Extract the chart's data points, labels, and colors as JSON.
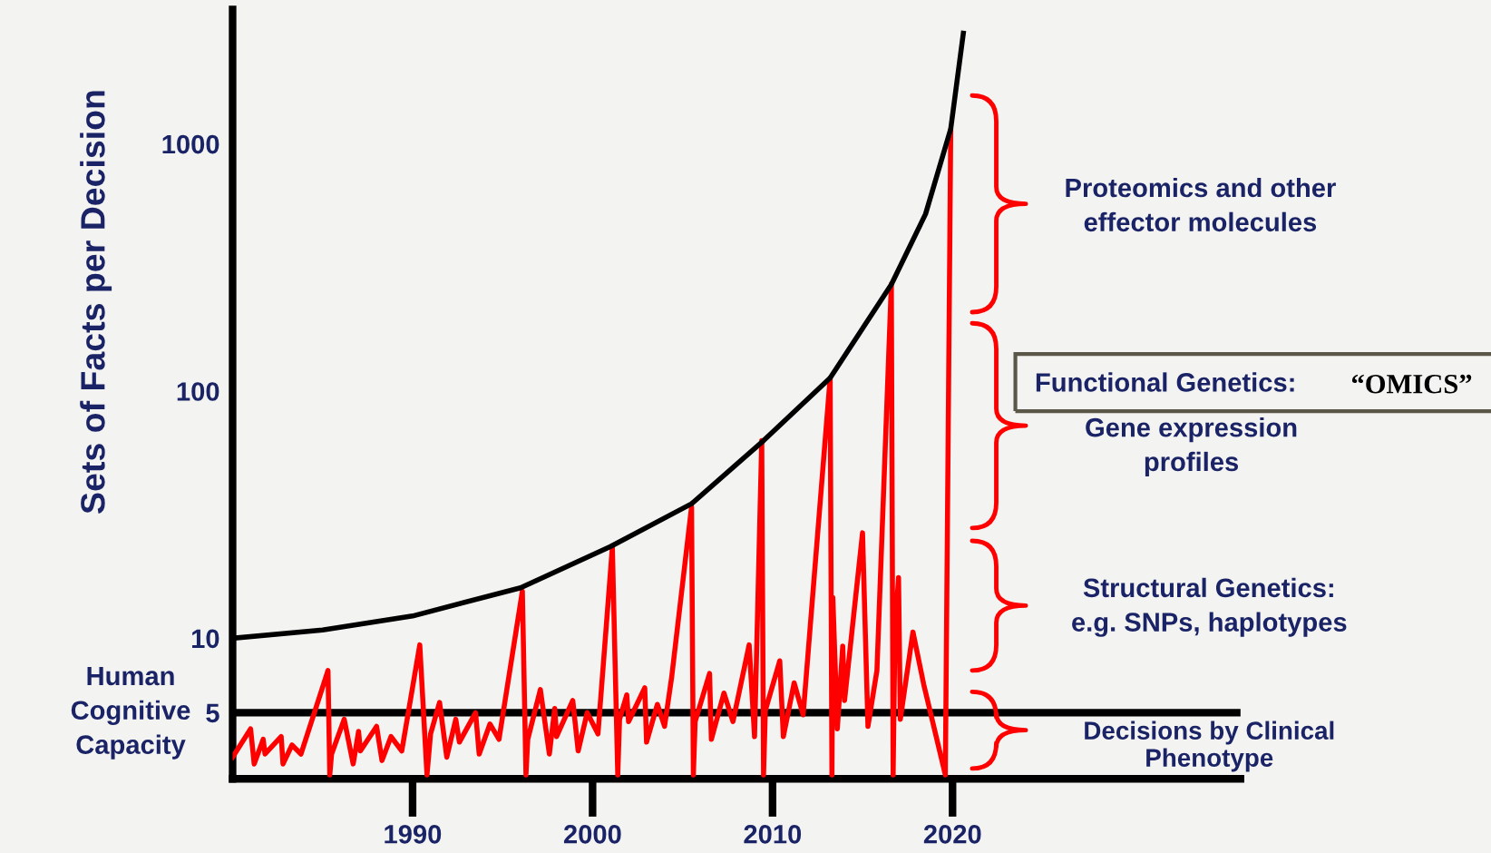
{
  "chart_data": {
    "type": "line",
    "ylabel": "Sets of Facts per Decision",
    "log": "y",
    "grid": false,
    "xlim": [
      1980,
      2036
    ],
    "ylim": [
      2.7,
      3500
    ],
    "xticks": [
      1990,
      2000,
      2010,
      2020
    ],
    "yticks": [
      5,
      10,
      100,
      1000
    ],
    "series": [
      {
        "color": "#ff0000",
        "x": [
          1980.0,
          1981.0,
          1981.2,
          1981.7,
          1981.8,
          1982.7,
          1982.8,
          1983.3,
          1983.8,
          1985.3,
          1985.4,
          1985.5,
          1986.2,
          1986.7,
          1987.0,
          1987.1,
          1988.0,
          1988.3,
          1988.8,
          1989.4,
          1990.4,
          1990.8,
          1991.0,
          1991.5,
          1991.9,
          1992.4,
          1992.6,
          1993.5,
          1993.7,
          1994.3,
          1994.8,
          1996.1,
          1996.3,
          1996.4,
          1997.1,
          1997.6,
          1997.9,
          1998.0,
          1998.9,
          1999.2,
          1999.7,
          2000.3,
          2001.1,
          2001.4,
          2001.5,
          2001.9,
          2002.0,
          2002.9,
          2003.0,
          2003.6,
          2004.0,
          2004.4,
          2005.5,
          2005.6,
          2005.7,
          2006.5,
          2006.6,
          2007.3,
          2007.8,
          2008.7,
          2009.0,
          2009.4,
          2009.5,
          2009.6,
          2010.4,
          2010.6,
          2011.2,
          2011.7,
          2013.2,
          2013.3,
          2013.35,
          2013.6,
          2013.9,
          2014.0,
          2015.0,
          2015.3,
          2015.8,
          2016.6,
          2016.7,
          2016.8,
          2017.0,
          2017.1,
          2017.8,
          2018.4,
          2019.6,
          2019.9
        ],
        "values": [
          3.3,
          4.3,
          3.1,
          3.9,
          3.4,
          4.0,
          3.1,
          3.7,
          3.4,
          7.4,
          2.8,
          3.4,
          4.7,
          3.1,
          4.2,
          3.5,
          4.4,
          3.2,
          4.0,
          3.5,
          9.4,
          2.8,
          4.1,
          5.5,
          3.3,
          4.7,
          3.8,
          5.0,
          3.4,
          4.5,
          3.9,
          15.5,
          2.8,
          3.9,
          6.2,
          3.4,
          5.2,
          4.0,
          5.6,
          3.5,
          5.0,
          4.1,
          23.4,
          2.8,
          4.7,
          5.9,
          4.6,
          6.3,
          3.8,
          5.4,
          4.4,
          7.0,
          34,
          2.8,
          4.6,
          7.2,
          3.9,
          6.0,
          4.6,
          9.4,
          4.0,
          63,
          2.8,
          5.1,
          8.1,
          4.0,
          6.6,
          4.9,
          113,
          2.8,
          14.6,
          4.3,
          9.3,
          5.6,
          26.7,
          4.4,
          7.4,
          271,
          2.8,
          10.6,
          17.6,
          4.7,
          10.6,
          6.5,
          2.8,
          1130
        ]
      },
      {
        "color": "#000000",
        "x": [
          1980,
          1985,
          1990,
          1996,
          2001,
          2005.5,
          2009.5,
          2013.2,
          2016.6,
          2018.5,
          2019.9,
          2020.6
        ],
        "values": [
          10,
          10.8,
          12.3,
          16,
          23.5,
          35,
          63,
          113,
          270,
          520,
          1150,
          2800
        ]
      }
    ],
    "ref_lines": [
      {
        "axis": "y",
        "value": 5,
        "label": "Human\nCognitive\nCapacity",
        "color": "#000000"
      }
    ],
    "annotations": [
      "Proteomics and other\neffector molecules",
      "Functional Genetics:",
      "“OMICS”",
      "Gene expression\nprofiles",
      "Structural Genetics:\ne.g. SNPs, haplotypes",
      "Decisions by Clinical\nPhenotype"
    ]
  }
}
